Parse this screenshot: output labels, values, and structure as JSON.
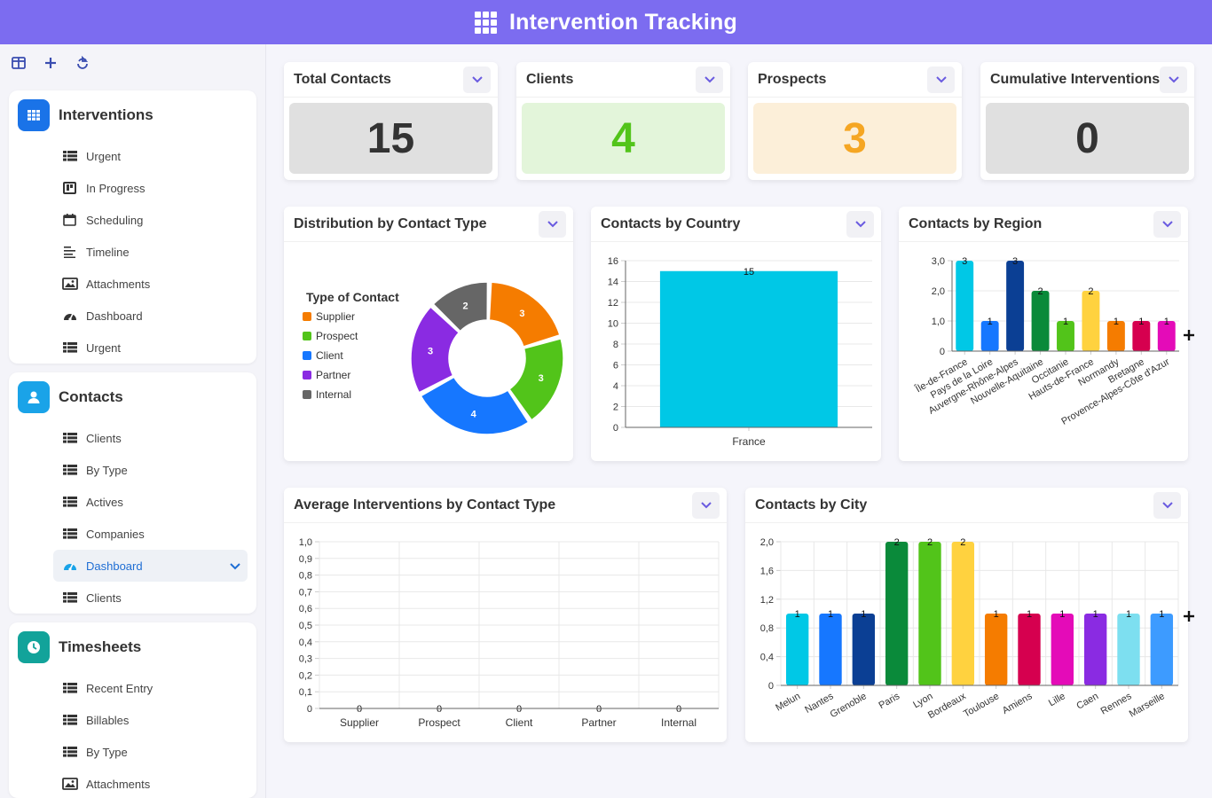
{
  "app": {
    "title": "Intervention Tracking"
  },
  "toolbar": {
    "icons": [
      "panel-icon",
      "plus-icon",
      "refresh-icon"
    ]
  },
  "sidebar": {
    "groups": [
      {
        "title": "Interventions",
        "color": "#1a73e8",
        "items": [
          {
            "label": "Urgent",
            "icon": "list-icon"
          },
          {
            "label": "In Progress",
            "icon": "kanban-icon"
          },
          {
            "label": "Scheduling",
            "icon": "calendar-icon"
          },
          {
            "label": "Timeline",
            "icon": "timeline-icon"
          },
          {
            "label": "Attachments",
            "icon": "image-icon"
          },
          {
            "label": "Dashboard",
            "icon": "gauge-icon"
          },
          {
            "label": "Urgent",
            "icon": "list-icon"
          }
        ]
      },
      {
        "title": "Contacts",
        "color": "#1aa3e8",
        "items": [
          {
            "label": "Clients",
            "icon": "list-icon"
          },
          {
            "label": "By Type",
            "icon": "list-icon"
          },
          {
            "label": "Actives",
            "icon": "list-icon"
          },
          {
            "label": "Companies",
            "icon": "list-icon"
          },
          {
            "label": "Dashboard",
            "icon": "gauge-icon",
            "active": true
          },
          {
            "label": "Clients",
            "icon": "list-icon"
          }
        ]
      },
      {
        "title": "Timesheets",
        "color": "#12a39a",
        "items": [
          {
            "label": "Recent Entry",
            "icon": "list-icon"
          },
          {
            "label": "Billables",
            "icon": "list-icon"
          },
          {
            "label": "By Type",
            "icon": "list-icon"
          },
          {
            "label": "Attachments",
            "icon": "image-icon"
          }
        ]
      }
    ]
  },
  "kpis": [
    {
      "title": "Total Contacts",
      "value": "15",
      "bg": "#e0e0e0",
      "color": "#333333"
    },
    {
      "title": "Clients",
      "value": "4",
      "bg": "#e3f5da",
      "color": "#52c41a"
    },
    {
      "title": "Prospects",
      "value": "3",
      "bg": "#fcefd9",
      "color": "#f5a623"
    },
    {
      "title": "Cumulative Interventions",
      "value": "0",
      "bg": "#e0e0e0",
      "color": "#333333"
    }
  ],
  "charts": {
    "contact_type": {
      "title": "Distribution by Contact Type"
    },
    "country": {
      "title": "Contacts by Country"
    },
    "region": {
      "title": "Contacts by Region"
    },
    "avg": {
      "title": "Average Interventions by Contact Type"
    },
    "city": {
      "title": "Contacts by City"
    }
  },
  "chart_data": [
    {
      "type": "pie",
      "title": "Distribution by Contact Type",
      "legend_title": "Type of Contact",
      "legend_position": "left",
      "categories": [
        "Supplier",
        "Prospect",
        "Client",
        "Partner",
        "Internal"
      ],
      "values": [
        3,
        3,
        4,
        3,
        2
      ],
      "colors": [
        "#f57c00",
        "#52c41a",
        "#1677ff",
        "#8a2be2",
        "#666666"
      ]
    },
    {
      "type": "bar",
      "title": "Contacts by Country",
      "categories": [
        "France"
      ],
      "values": [
        15
      ],
      "ylim": [
        0,
        16
      ],
      "yticks": [
        "0",
        "2",
        "4",
        "6",
        "8",
        "10",
        "12",
        "14",
        "16"
      ],
      "colors": [
        "#00c8e6"
      ],
      "grid": true
    },
    {
      "type": "bar",
      "title": "Contacts by Region",
      "categories": [
        "Île-de-France",
        "Pays de la Loire",
        "Auvergne-Rhône-Alpes",
        "Nouvelle-Aquitaine",
        "Occitanie",
        "Hauts-de-France",
        "Normandy",
        "Bretagne",
        "Provence-Alpes-Côte d'Azur"
      ],
      "values": [
        3,
        1,
        3,
        2,
        1,
        2,
        1,
        1,
        1
      ],
      "ylim": [
        0,
        3
      ],
      "yticks": [
        "0",
        "1,0",
        "2,0",
        "3,0"
      ],
      "colors": [
        "#00c8e6",
        "#1677ff",
        "#0b3f94",
        "#0a8a3a",
        "#52c41a",
        "#ffd23f",
        "#f57c00",
        "#d6004f",
        "#e40bb8"
      ],
      "grid": true
    },
    {
      "type": "bar",
      "title": "Average Interventions by Contact Type",
      "categories": [
        "Supplier",
        "Prospect",
        "Client",
        "Partner",
        "Internal"
      ],
      "values": [
        0,
        0,
        0,
        0,
        0
      ],
      "ylim": [
        0,
        1
      ],
      "yticks": [
        "0",
        "0,1",
        "0,2",
        "0,3",
        "0,4",
        "0,5",
        "0,6",
        "0,7",
        "0,8",
        "0,9",
        "1,0"
      ],
      "grid": true
    },
    {
      "type": "bar",
      "title": "Contacts by City",
      "categories": [
        "Melun",
        "Nantes",
        "Grenoble",
        "Paris",
        "Lyon",
        "Bordeaux",
        "Toulouse",
        "Amiens",
        "Lille",
        "Caen",
        "Rennes",
        "Marseille"
      ],
      "values": [
        1,
        1,
        1,
        2,
        2,
        2,
        1,
        1,
        1,
        1,
        1,
        1
      ],
      "ylim": [
        0,
        2
      ],
      "yticks": [
        "0",
        "0,4",
        "0,8",
        "1,2",
        "1,6",
        "2,0"
      ],
      "colors": [
        "#00c8e6",
        "#1677ff",
        "#0b3f94",
        "#0a8a3a",
        "#52c41a",
        "#ffd23f",
        "#f57c00",
        "#d6004f",
        "#e40bb8",
        "#8a2be2",
        "#7ddff0",
        "#3d9bff"
      ],
      "grid": true
    }
  ]
}
